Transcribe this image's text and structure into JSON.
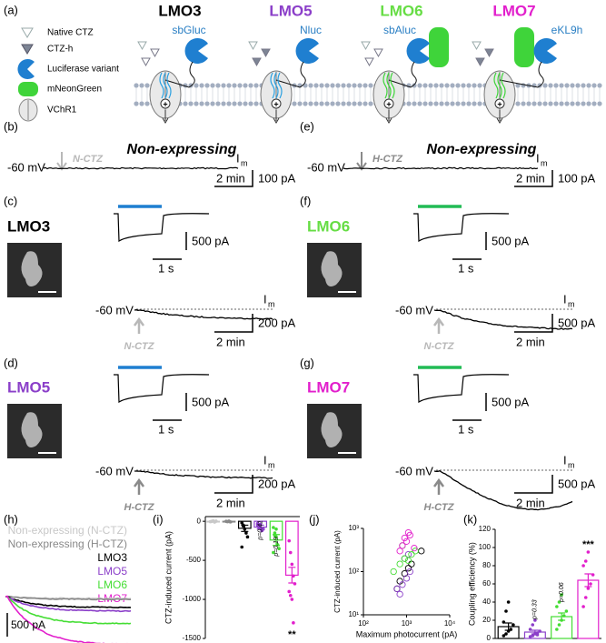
{
  "panel_labels": [
    "(a)",
    "(b)",
    "(c)",
    "(d)",
    "(e)",
    "(f)",
    "(g)",
    "(h)",
    "(i)",
    "(j)",
    "(k)"
  ],
  "panel_a": {
    "legend": [
      "Native CTZ",
      "CTZ-h",
      "Luciferase variant",
      "mNeonGreen",
      "VChR1"
    ],
    "constructs": [
      {
        "name": "LMO3",
        "luciferase": "sbGluc",
        "color": "#000000"
      },
      {
        "name": "LMO5",
        "luciferase": "Nluc",
        "color": "#8b3fc9"
      },
      {
        "name": "LMO6",
        "luciferase": "sbAluc",
        "color": "#66dd44"
      },
      {
        "name": "LMO7",
        "luciferase": "eKL9h",
        "color": "#e21fcc"
      }
    ]
  },
  "recordings": [
    {
      "title": "Non-expressing",
      "substrate": "N-CTZ",
      "holding": "-60 mV",
      "current": "I",
      "current_sub": "m",
      "scale_current": "100 pA",
      "scale_time": "2 min"
    },
    {
      "label": "LMO3",
      "color": "#000000",
      "light_color": "#1f7fd0",
      "substrate": "N-CTZ",
      "holding": "-60 mV",
      "current": "I",
      "current_sub": "m",
      "inset_current": "500 pA",
      "inset_time": "1 s",
      "scale_current": "200 pA",
      "scale_time": "2 min"
    },
    {
      "label": "LMO5",
      "color": "#8b3fc9",
      "light_color": "#1f7fd0",
      "substrate": "H-CTZ",
      "holding": "-60 mV",
      "current": "I",
      "current_sub": "m",
      "inset_current": "500 pA",
      "inset_time": "1 s",
      "scale_current": "200 pA",
      "scale_time": "2 min"
    },
    {
      "title": "Non-expressing",
      "substrate": "H-CTZ",
      "holding": "-60 mV",
      "current": "I",
      "current_sub": "m",
      "scale_current": "100 pA",
      "scale_time": "2 min"
    },
    {
      "label": "LMO6",
      "color": "#66dd44",
      "light_color": "#22bb55",
      "substrate": "N-CTZ",
      "holding": "-60 mV",
      "current": "I",
      "current_sub": "m",
      "inset_current": "500 pA",
      "inset_time": "1 s",
      "scale_current": "500 pA",
      "scale_time": "2 min"
    },
    {
      "label": "LMO7",
      "color": "#e21fcc",
      "light_color": "#22bb55",
      "substrate": "H-CTZ",
      "holding": "-60 mV",
      "current": "I",
      "current_sub": "m",
      "inset_current": "500 pA",
      "inset_time": "1 s",
      "scale_current": "500 pA",
      "scale_time": "2 min"
    }
  ],
  "panel_h": {
    "legend": [
      {
        "name": "Non-expressing (N-CTZ)",
        "color": "#c8c8c8"
      },
      {
        "name": "Non-expressing (H-CTZ)",
        "color": "#888888"
      },
      {
        "name": "LMO3",
        "color": "#000000"
      },
      {
        "name": "LMO5",
        "color": "#8b3fc9"
      },
      {
        "name": "LMO6",
        "color": "#44dd33"
      },
      {
        "name": "LMO7",
        "color": "#e21fcc"
      }
    ],
    "scale": "500 pA"
  },
  "chart_data": [
    {
      "type": "bar",
      "ylabel": "CTZ-induced current (pA)",
      "categories": [
        null,
        null,
        null,
        null,
        null,
        null
      ],
      "colors": [
        "#c8c8c8",
        "#888888",
        "#000000",
        "#8b3fc9",
        "#44dd33",
        "#e21fcc"
      ],
      "values": [
        -5,
        -5,
        -90,
        -75,
        -240,
        -690
      ],
      "errors": [
        5,
        5,
        40,
        25,
        70,
        100
      ],
      "points": [
        [
          -5,
          0,
          5,
          -10,
          2
        ],
        [
          0,
          -5,
          3,
          -8
        ],
        [
          -20,
          -60,
          -100,
          -150,
          -200,
          -330,
          -50
        ],
        [
          -30,
          -60,
          -90,
          -120,
          -100,
          -50,
          -80,
          -40
        ],
        [
          -80,
          -150,
          -200,
          -300,
          -350,
          -400,
          -180,
          -100
        ],
        [
          -250,
          -400,
          -550,
          -700,
          -800,
          -900,
          -950,
          -1000,
          -1300
        ]
      ],
      "value_annotations": [
        null,
        null,
        null,
        "p=0.41",
        "p=0.19",
        "**"
      ],
      "ylim": [
        -1500,
        60
      ],
      "yticks": [
        0,
        -500,
        -1000,
        -1500
      ]
    },
    {
      "type": "scatter",
      "xlabel": "Maximum photocurrent (pA)",
      "ylabel": "CTZ-induced current (pA)",
      "xlog": true,
      "ylog": true,
      "xlim": [
        100,
        10000
      ],
      "ylim": [
        10,
        1000
      ],
      "xticks": [
        {
          "value": 100,
          "label": "10²"
        },
        {
          "value": 1000,
          "label": "10³"
        },
        {
          "value": 10000,
          "label": "10⁴"
        }
      ],
      "yticks": [
        {
          "value": 10,
          "label": "10¹"
        },
        {
          "value": 100,
          "label": "10²"
        },
        {
          "value": 1000,
          "label": "10³"
        }
      ],
      "series": [
        {
          "color": "#000000",
          "x": [
            700,
            900,
            1300,
            2200,
            1100,
            600
          ],
          "values": [
            60,
            90,
            150,
            300,
            120,
            40
          ]
        },
        {
          "color": "#8b3fc9",
          "x": [
            700,
            800,
            1000,
            1200,
            900,
            1100,
            600
          ],
          "values": [
            30,
            50,
            70,
            100,
            200,
            250,
            40
          ]
        },
        {
          "color": "#44dd33",
          "x": [
            500,
            700,
            900,
            1300,
            1600,
            800,
            1100
          ],
          "values": [
            100,
            150,
            200,
            250,
            300,
            400,
            180
          ]
        },
        {
          "color": "#e21fcc",
          "x": [
            800,
            1000,
            1200,
            700,
            900,
            1500,
            1100
          ],
          "values": [
            400,
            500,
            700,
            300,
            600,
            350,
            800
          ]
        }
      ]
    },
    {
      "type": "bar",
      "ylabel": "Coupling efficiency (%)",
      "categories": [
        null,
        null,
        null,
        null
      ],
      "colors": [
        "#000000",
        "#8b3fc9",
        "#44dd33",
        "#e21fcc"
      ],
      "values": [
        13,
        7,
        24,
        64
      ],
      "errors": [
        4,
        2,
        4,
        7
      ],
      "points": [
        [
          3,
          5,
          8,
          10,
          15,
          18,
          30,
          40
        ],
        [
          2,
          3,
          5,
          6,
          8,
          10,
          15,
          20,
          4
        ],
        [
          10,
          15,
          20,
          25,
          30,
          35,
          40,
          48
        ],
        [
          35,
          45,
          55,
          60,
          70,
          80,
          85,
          95
        ]
      ],
      "value_annotations": [
        null,
        "p=0.33",
        "p=0.06",
        "***"
      ],
      "ylim": [
        0,
        120
      ],
      "yticks": [
        0,
        20,
        40,
        60,
        80,
        100,
        120
      ]
    }
  ]
}
